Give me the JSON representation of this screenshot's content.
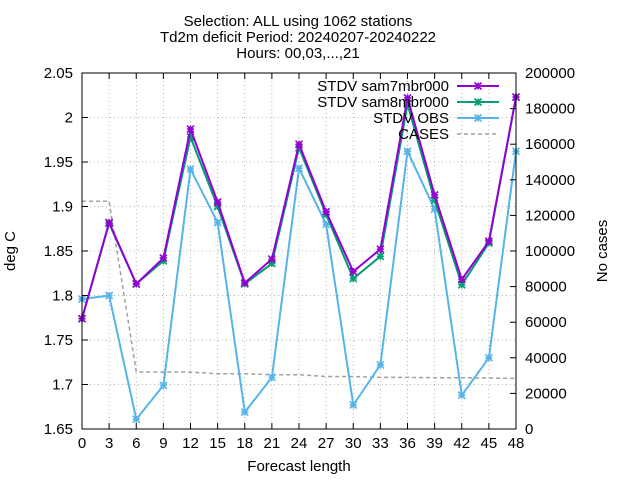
{
  "chart_data": {
    "type": "line",
    "title_lines": [
      "Selection: ALL using  1062 stations",
      "Td2m deficit   Period: 20240207-20240222",
      "Hours: 00,03,...,21"
    ],
    "xlabel": "Forecast length",
    "ylabel": "deg C",
    "y2label": "No cases",
    "x": [
      0,
      3,
      6,
      9,
      12,
      15,
      18,
      21,
      24,
      27,
      30,
      33,
      36,
      39,
      42,
      45,
      48
    ],
    "xlim": [
      0,
      48
    ],
    "ylim": [
      1.65,
      2.05
    ],
    "y2lim": [
      0,
      200000
    ],
    "xticks": [
      "0",
      "3",
      "6",
      "9",
      "12",
      "15",
      "18",
      "21",
      "24",
      "27",
      "30",
      "33",
      "36",
      "39",
      "42",
      "45",
      "48"
    ],
    "yticks": [
      "1.65",
      "1.7",
      "1.75",
      "1.8",
      "1.85",
      "1.9",
      "1.95",
      "2",
      "2.05"
    ],
    "y2ticks": [
      "0",
      "20000",
      "40000",
      "60000",
      "80000",
      "100000",
      "120000",
      "140000",
      "160000",
      "180000",
      "200000"
    ],
    "grid": true,
    "legend_position": "top-right",
    "series": [
      {
        "name": "STDV sam7mbr000",
        "color": "#9400d3",
        "marker": "x",
        "axis": "y1",
        "values": [
          1.774,
          1.882,
          1.813,
          1.842,
          1.987,
          1.905,
          1.814,
          1.841,
          1.97,
          1.894,
          1.827,
          1.852,
          2.022,
          1.913,
          1.818,
          1.861,
          2.023
        ]
      },
      {
        "name": "STDV sam8mbr000",
        "color": "#009e73",
        "marker": "x",
        "axis": "y1",
        "values": [
          1.774,
          1.881,
          1.813,
          1.839,
          1.978,
          1.9,
          1.813,
          1.836,
          1.966,
          1.891,
          1.819,
          1.844,
          2.015,
          1.907,
          1.812,
          1.859,
          2.023
        ]
      },
      {
        "name": "STDV OBS",
        "color": "#56b4e9",
        "marker": "x",
        "axis": "y1",
        "values": [
          1.796,
          1.8,
          1.661,
          1.699,
          1.942,
          1.882,
          1.669,
          1.708,
          1.943,
          1.88,
          1.677,
          1.722,
          1.962,
          1.897,
          1.688,
          1.73,
          1.962
        ]
      },
      {
        "name": "CASES",
        "color": "#a0a0a0",
        "dashed": true,
        "axis": "y2",
        "values": [
          128000,
          128000,
          32000,
          32000,
          32000,
          31000,
          31000,
          30500,
          30500,
          29500,
          29500,
          29000,
          29000,
          28800,
          28800,
          28600,
          28400
        ]
      }
    ]
  }
}
